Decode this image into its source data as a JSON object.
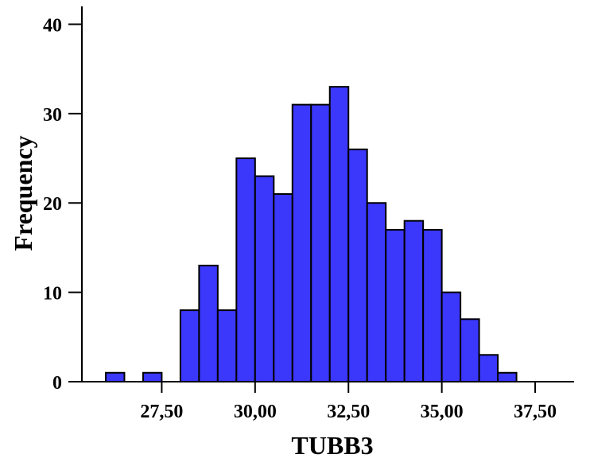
{
  "chart_data": {
    "type": "bar",
    "title": "",
    "xlabel": "TUBB3",
    "ylabel": "Frequency",
    "bin_width": 0.5,
    "bins": [
      {
        "start": 26.0,
        "end": 26.5,
        "count": 1
      },
      {
        "start": 26.5,
        "end": 27.0,
        "count": 0
      },
      {
        "start": 27.0,
        "end": 27.5,
        "count": 1
      },
      {
        "start": 27.5,
        "end": 28.0,
        "count": 0
      },
      {
        "start": 28.0,
        "end": 28.5,
        "count": 8
      },
      {
        "start": 28.5,
        "end": 29.0,
        "count": 13
      },
      {
        "start": 29.0,
        "end": 29.5,
        "count": 8
      },
      {
        "start": 29.5,
        "end": 30.0,
        "count": 25
      },
      {
        "start": 30.0,
        "end": 30.5,
        "count": 23
      },
      {
        "start": 30.5,
        "end": 31.0,
        "count": 21
      },
      {
        "start": 31.0,
        "end": 31.5,
        "count": 31
      },
      {
        "start": 31.5,
        "end": 32.0,
        "count": 31
      },
      {
        "start": 32.0,
        "end": 32.5,
        "count": 33
      },
      {
        "start": 32.5,
        "end": 33.0,
        "count": 26
      },
      {
        "start": 33.0,
        "end": 33.5,
        "count": 20
      },
      {
        "start": 33.5,
        "end": 34.0,
        "count": 17
      },
      {
        "start": 34.0,
        "end": 34.5,
        "count": 18
      },
      {
        "start": 34.5,
        "end": 35.0,
        "count": 17
      },
      {
        "start": 35.0,
        "end": 35.5,
        "count": 10
      },
      {
        "start": 35.5,
        "end": 36.0,
        "count": 7
      },
      {
        "start": 36.0,
        "end": 36.5,
        "count": 3
      },
      {
        "start": 36.5,
        "end": 37.0,
        "count": 1
      }
    ],
    "xlim": [
      25.0,
      38.5
    ],
    "ylim": [
      0,
      42
    ],
    "x_ticks": [
      {
        "value": 27.5,
        "label": "27,50"
      },
      {
        "value": 30.0,
        "label": "30,00"
      },
      {
        "value": 32.5,
        "label": "32,50"
      },
      {
        "value": 35.0,
        "label": "35,00"
      },
      {
        "value": 37.5,
        "label": "37,50"
      }
    ],
    "y_ticks": [
      {
        "value": 0,
        "label": "0"
      },
      {
        "value": 10,
        "label": "10"
      },
      {
        "value": 20,
        "label": "20"
      },
      {
        "value": 30,
        "label": "30"
      },
      {
        "value": 40,
        "label": "40"
      }
    ],
    "grid": false,
    "bar_color": "#3b37fb",
    "edge_color": "#000000"
  }
}
